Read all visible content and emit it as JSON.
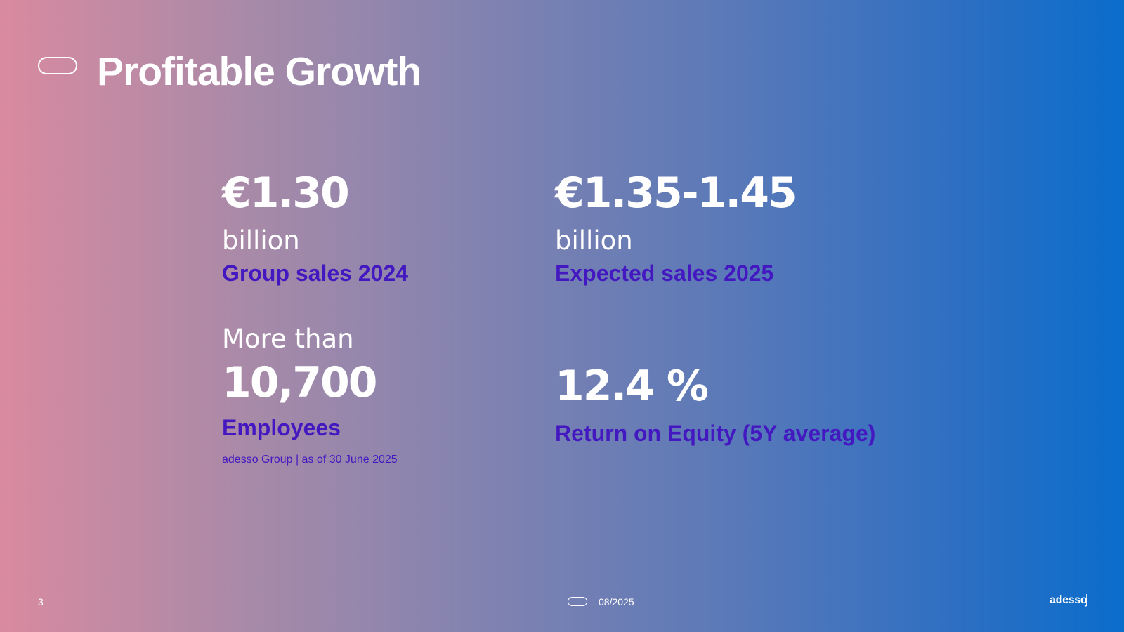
{
  "slide": {
    "title": "Profitable Growth",
    "page_number": "3",
    "date": "08/2025",
    "logo_text": "adesso"
  },
  "kpis": {
    "group_sales": {
      "value": "€1.30",
      "unit": "billion",
      "label": "Group sales 2024"
    },
    "expected_sales": {
      "value": "€1.35-1.45",
      "unit": "billion",
      "label": "Expected sales 2025"
    },
    "employees": {
      "prefix": "More than",
      "value": "10,700",
      "label": "Employees",
      "note": "adesso Group | as of 30 June 2025"
    },
    "roe": {
      "value": "12.4 %",
      "label": "Return on Equity (5Y average)"
    }
  },
  "colors": {
    "label_accent": "#4418c0",
    "gradient_start": "#d98aa0",
    "gradient_end": "#0a6dcc"
  }
}
